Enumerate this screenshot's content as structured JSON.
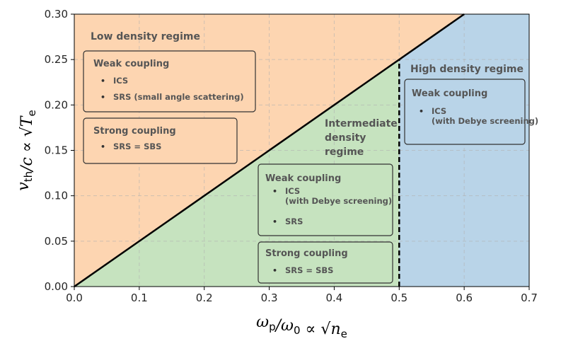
{
  "chart_data": {
    "type": "area",
    "xlabel": "ω_p/ω_0 ∝ √n_e",
    "ylabel": "v_th/c ∝ √T_e",
    "xlim": [
      0.0,
      0.7
    ],
    "ylim": [
      0.0,
      0.3
    ],
    "xticks": [
      "0.0",
      "0.1",
      "0.2",
      "0.3",
      "0.4",
      "0.5",
      "0.6",
      "0.7"
    ],
    "yticks": [
      "0.00",
      "0.05",
      "0.10",
      "0.15",
      "0.20",
      "0.25",
      "0.30"
    ],
    "grid": true,
    "boundaries": {
      "diagonal": {
        "x": [
          0.0,
          0.6
        ],
        "y": [
          0.0,
          0.3
        ],
        "style": "solid"
      },
      "vertical": {
        "x": 0.5,
        "y_range": [
          0.0,
          0.25
        ],
        "style": "dashed"
      }
    },
    "regions": [
      {
        "name": "low",
        "color": "#fdd5b1",
        "title": [
          "Low density regime"
        ]
      },
      {
        "name": "intermediate",
        "color": "#c6e3bf",
        "title": [
          "Intermediate",
          "density",
          "regime"
        ]
      },
      {
        "name": "high",
        "color": "#b9d4e8",
        "title": [
          "High density regime"
        ]
      }
    ],
    "boxes": [
      {
        "id": "low-weak",
        "title": "Weak coupling",
        "items": [
          [
            "ICS"
          ],
          [
            "SRS (small angle scattering)"
          ]
        ]
      },
      {
        "id": "low-strong",
        "title": "Strong coupling",
        "items": [
          [
            "SRS = SBS"
          ]
        ]
      },
      {
        "id": "inter-weak",
        "title": "Weak coupling",
        "items": [
          [
            "ICS",
            "(with Debye screening)"
          ],
          [
            "SRS"
          ]
        ]
      },
      {
        "id": "inter-strong",
        "title": "Strong coupling",
        "items": [
          [
            "SRS = SBS"
          ]
        ]
      },
      {
        "id": "high-weak",
        "title": "Weak coupling",
        "items": [
          [
            "ICS",
            "(with Debye screening)"
          ]
        ]
      }
    ]
  }
}
